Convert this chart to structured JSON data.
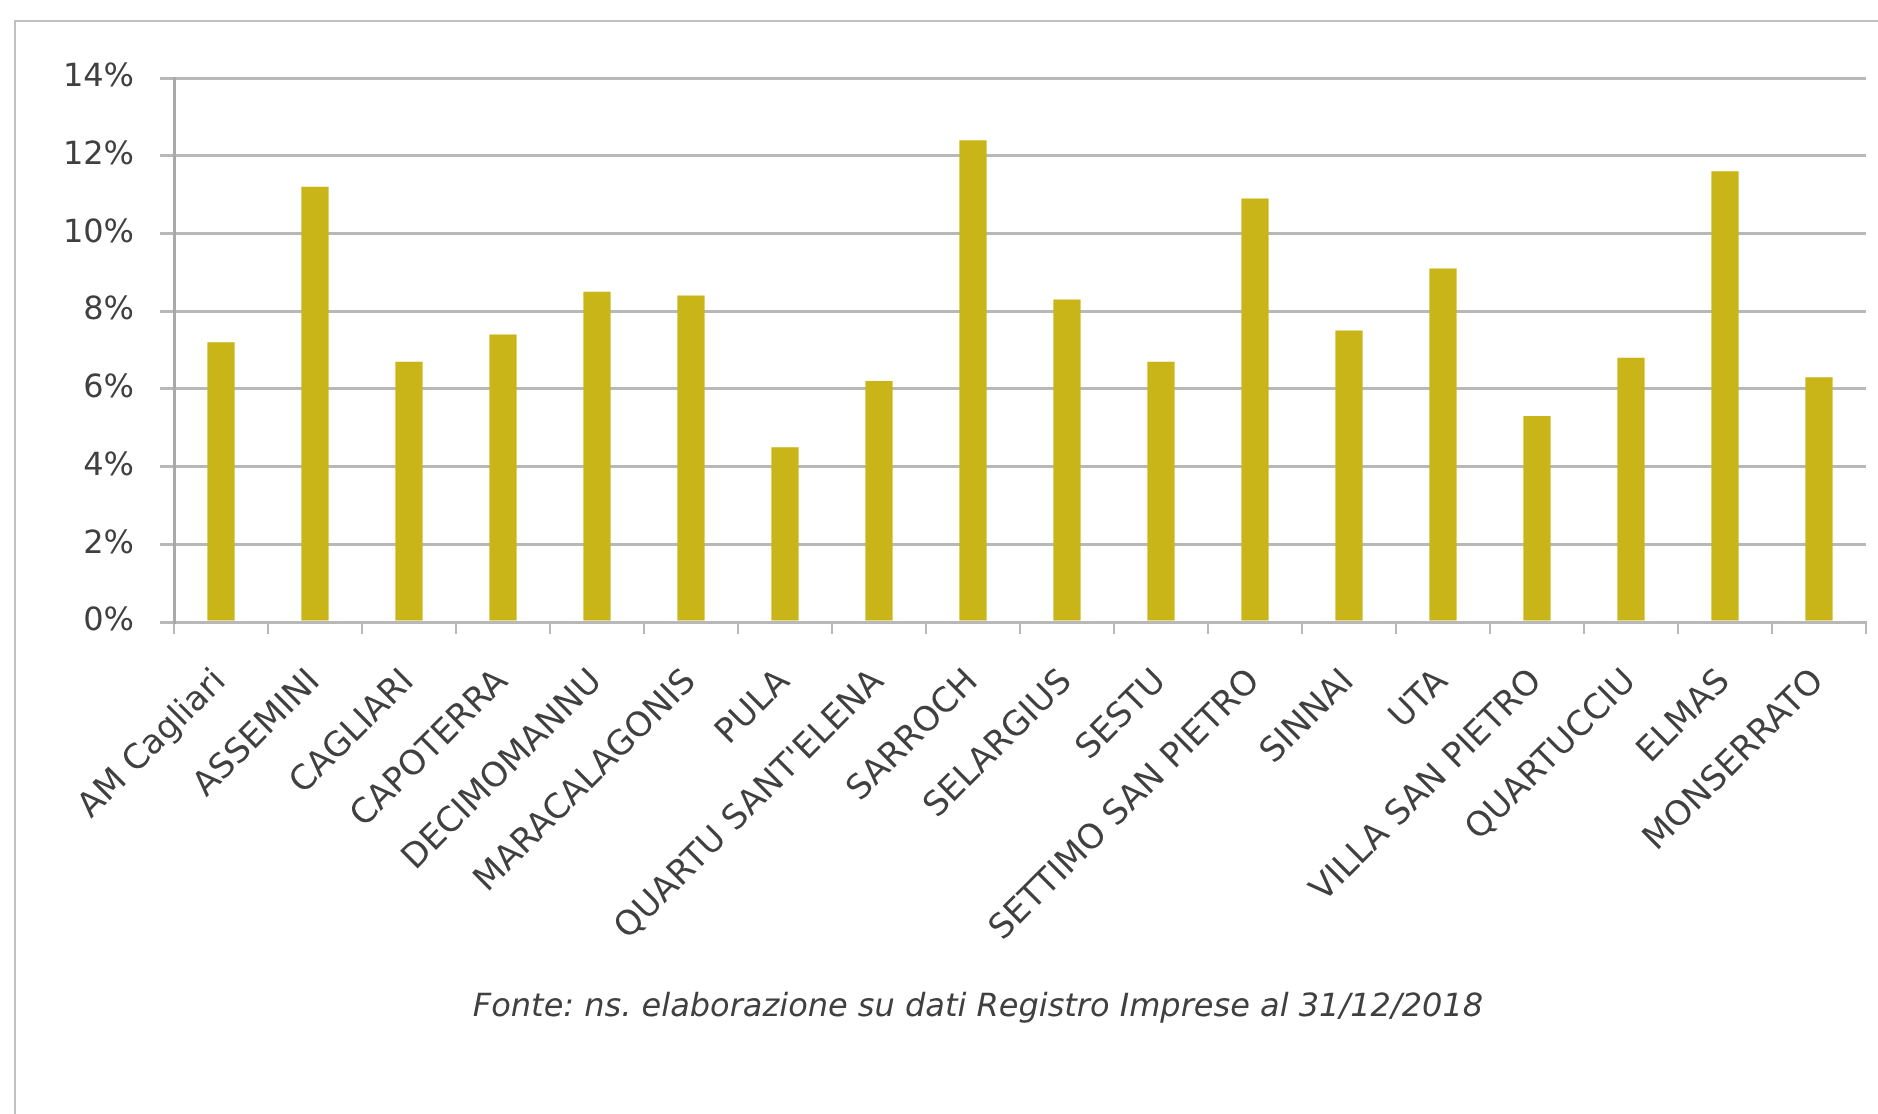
{
  "chart_data": {
    "type": "bar",
    "categories": [
      "AM Cagliari",
      "ASSEMINI",
      "CAGLIARI",
      "CAPOTERRA",
      "DECIMOMANNU",
      "MARACALAGONIS",
      "PULA",
      "QUARTU SANT'ELENA",
      "SARROCH",
      "SELARGIUS",
      "SESTU",
      "SETTIMO SAN PIETRO",
      "SINNAI",
      "UTA",
      "VILLA SAN PIETRO",
      "QUARTUCCIU",
      "ELMAS",
      "MONSERRATO"
    ],
    "values": [
      7.2,
      11.2,
      6.7,
      7.4,
      8.5,
      8.4,
      4.5,
      6.2,
      12.4,
      8.3,
      6.7,
      10.9,
      7.5,
      9.1,
      5.3,
      6.8,
      11.6,
      6.3
    ],
    "color": "#c9b518",
    "ylim": [
      0,
      14
    ],
    "yticks": [
      {
        "value": 0,
        "label": "0%"
      },
      {
        "value": 2,
        "label": "2%"
      },
      {
        "value": 4,
        "label": "4%"
      },
      {
        "value": 6,
        "label": "6%"
      },
      {
        "value": 8,
        "label": "8%"
      },
      {
        "value": 10,
        "label": "10%"
      },
      {
        "value": 12,
        "label": "12%"
      },
      {
        "value": 14,
        "label": "14%"
      }
    ],
    "grid": "y",
    "annotations": [
      "Fonte: ns. elaborazione su dati Registro Imprese al 31/12/2018"
    ]
  }
}
